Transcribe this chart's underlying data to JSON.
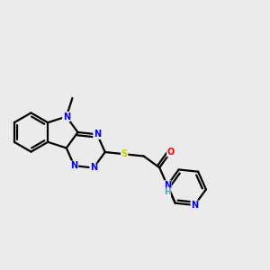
{
  "background_color": "#ebebeb",
  "atom_colors": {
    "C": "#000000",
    "N": "#0000ff",
    "O": "#ff0000",
    "S": "#cccc00",
    "H": "#5f9ea0"
  },
  "bond_color": "#000000",
  "figsize": [
    3.0,
    3.0
  ],
  "dpi": 100,
  "lw": 1.6,
  "fs": 7.0,
  "bl": 0.072
}
